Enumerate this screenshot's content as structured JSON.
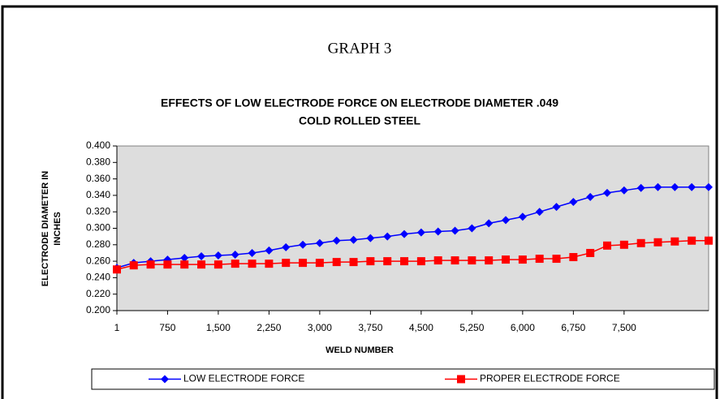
{
  "page_title": "GRAPH 3",
  "chart_data": {
    "type": "line",
    "title": [
      "EFFECTS OF LOW ELECTRODE FORCE ON ELECTRODE DIAMETER  .049",
      "COLD ROLLED STEEL"
    ],
    "xlabel": "WELD NUMBER",
    "ylabel": [
      "ELECTRODE DIAMETER IN",
      "INCHES"
    ],
    "x": [
      1,
      250,
      500,
      750,
      1000,
      1250,
      1500,
      1750,
      2000,
      2250,
      2500,
      2750,
      3000,
      3250,
      3500,
      3750,
      4000,
      4250,
      4500,
      4750,
      5000,
      5250,
      5500,
      5750,
      6000,
      6250,
      6500,
      6750,
      7000,
      7250,
      7500,
      7750,
      8000,
      8250,
      8500,
      8750
    ],
    "series": [
      {
        "name": "LOW ELECTRODE FORCE",
        "color": "#0000ff",
        "marker": "diamond",
        "values": [
          0.252,
          0.258,
          0.26,
          0.262,
          0.264,
          0.266,
          0.267,
          0.268,
          0.27,
          0.273,
          0.277,
          0.28,
          0.282,
          0.285,
          0.286,
          0.288,
          0.29,
          0.293,
          0.295,
          0.296,
          0.297,
          0.3,
          0.306,
          0.31,
          0.314,
          0.32,
          0.326,
          0.332,
          0.338,
          0.343,
          0.346,
          0.349,
          0.35,
          0.35,
          0.35,
          0.35
        ]
      },
      {
        "name": "PROPER ELECTRODE FORCE",
        "color": "#ff0000",
        "marker": "square",
        "values": [
          0.25,
          0.255,
          0.256,
          0.256,
          0.256,
          0.256,
          0.256,
          0.257,
          0.257,
          0.257,
          0.258,
          0.258,
          0.258,
          0.259,
          0.259,
          0.26,
          0.26,
          0.26,
          0.26,
          0.261,
          0.261,
          0.261,
          0.261,
          0.262,
          0.262,
          0.263,
          0.263,
          0.265,
          0.27,
          0.279,
          0.28,
          0.282,
          0.283,
          0.284,
          0.285,
          0.285
        ]
      }
    ],
    "xlim": [
      1,
      8750
    ],
    "xticks": [
      1,
      750,
      {
        "value": 1500,
        "label": "1,500"
      },
      {
        "value": 2250,
        "label": "2,250"
      },
      {
        "value": 3000,
        "label": "3,000"
      },
      {
        "value": 3750,
        "label": "3,750"
      },
      {
        "value": 4500,
        "label": "4,500"
      },
      {
        "value": 5250,
        "label": "5,250"
      },
      {
        "value": 6000,
        "label": "6,000"
      },
      {
        "value": 6750,
        "label": "6,750"
      },
      {
        "value": 7500,
        "label": "7,500"
      }
    ],
    "ylim": [
      0.2,
      0.4
    ],
    "yticks": [
      {
        "value": 0.2,
        "label": "0.200"
      },
      {
        "value": 0.22,
        "label": "0.220"
      },
      {
        "value": 0.24,
        "label": "0.240"
      },
      {
        "value": 0.26,
        "label": "0.260"
      },
      {
        "value": 0.28,
        "label": "0.280"
      },
      {
        "value": 0.3,
        "label": "0.300"
      },
      {
        "value": 0.32,
        "label": "0.320"
      },
      {
        "value": 0.34,
        "label": "0.340"
      },
      {
        "value": 0.36,
        "label": "0.360"
      },
      {
        "value": 0.38,
        "label": "0.380"
      },
      {
        "value": 0.4,
        "label": "0.400"
      }
    ],
    "legend": "bottom"
  }
}
